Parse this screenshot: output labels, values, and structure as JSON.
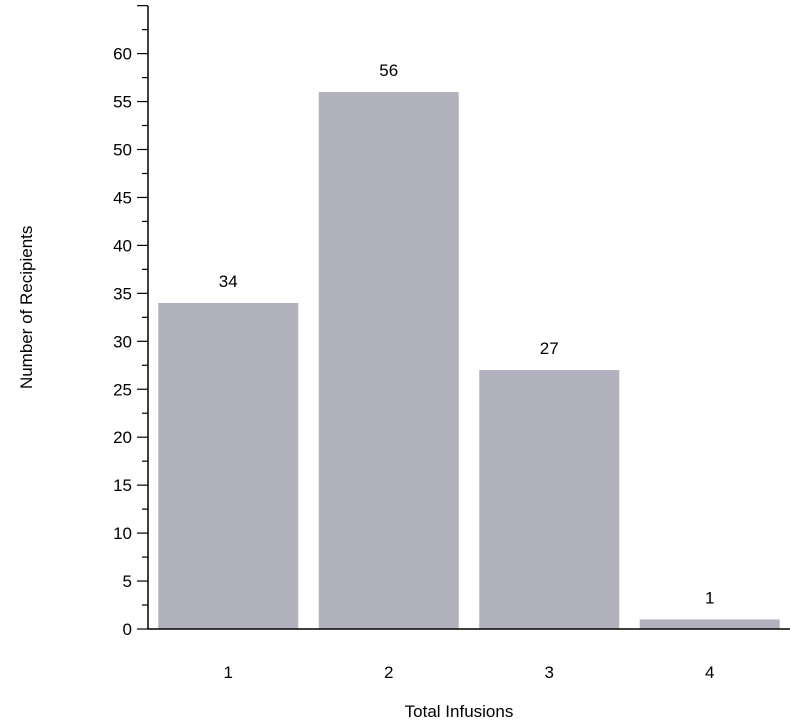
{
  "chart_data": {
    "type": "bar",
    "title": "",
    "xlabel": "Total Infusions",
    "ylabel": "Number of Recipients",
    "categories": [
      "1",
      "2",
      "3",
      "4"
    ],
    "values": [
      34,
      56,
      27,
      1
    ],
    "data_labels": [
      "34",
      "56",
      "27",
      "1"
    ],
    "ylim": [
      0,
      65
    ],
    "yticks": [
      0,
      5,
      10,
      15,
      20,
      25,
      30,
      35,
      40,
      45,
      50,
      55,
      60
    ],
    "ytick_labels": [
      "0",
      "5",
      "10",
      "15",
      "20",
      "25",
      "30",
      "35",
      "40",
      "45",
      "50",
      "55",
      "60"
    ],
    "grid": false,
    "bar_color": "#b2b2bf"
  }
}
